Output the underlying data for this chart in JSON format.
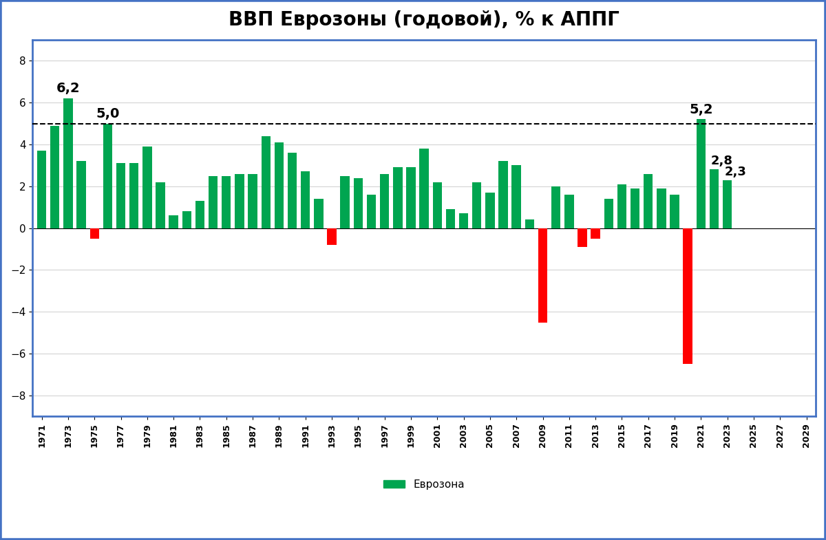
{
  "title": "ВВП Еврозоны (годовой), % к АППГ",
  "years": [
    1971,
    1972,
    1973,
    1974,
    1975,
    1976,
    1977,
    1978,
    1979,
    1980,
    1981,
    1982,
    1983,
    1984,
    1985,
    1986,
    1987,
    1988,
    1989,
    1990,
    1991,
    1992,
    1993,
    1994,
    1995,
    1996,
    1997,
    1998,
    1999,
    2000,
    2001,
    2002,
    2003,
    2004,
    2005,
    2006,
    2007,
    2008,
    2009,
    2010,
    2011,
    2012,
    2013,
    2014,
    2015,
    2016,
    2017,
    2018,
    2019,
    2020,
    2021,
    2022,
    2023,
    2024,
    2025,
    2026,
    2027,
    2028,
    2029
  ],
  "values": [
    3.7,
    4.9,
    6.2,
    3.2,
    -0.5,
    5.0,
    3.1,
    3.1,
    3.9,
    2.2,
    0.6,
    0.8,
    1.3,
    2.5,
    2.5,
    2.6,
    2.6,
    4.4,
    4.1,
    3.6,
    2.7,
    1.4,
    -0.8,
    2.5,
    2.4,
    1.6,
    2.6,
    2.9,
    2.9,
    3.8,
    2.2,
    0.9,
    0.7,
    2.2,
    1.7,
    3.2,
    3.0,
    0.4,
    -4.5,
    2.0,
    1.6,
    -0.9,
    -0.5,
    1.4,
    2.1,
    1.9,
    2.6,
    1.9,
    1.6,
    -6.5,
    5.2,
    2.8,
    2.3,
    0.0,
    0.0,
    0.0,
    0.0,
    0.0,
    0.0
  ],
  "red_years": [
    1975,
    1993,
    2009,
    2012,
    2013,
    2020
  ],
  "dashed_line_y": 5.0,
  "legend_label": "Еврозона",
  "green_color": "#00A550",
  "red_color": "#FF0000",
  "ylim": [
    -9,
    9
  ],
  "yticks": [
    -8,
    -6,
    -4,
    -2,
    0,
    2,
    4,
    6,
    8
  ],
  "background_color": "#FFFFFF",
  "border_color": "#4472C4",
  "title_fontsize": 20,
  "axis_tick_fontsize": 10,
  "label_1973_text": "6,2",
  "label_1976_text": "5,0",
  "label_2021_text": "5,2",
  "label_2022_text": "2,8",
  "label_2023_text": "2,3"
}
